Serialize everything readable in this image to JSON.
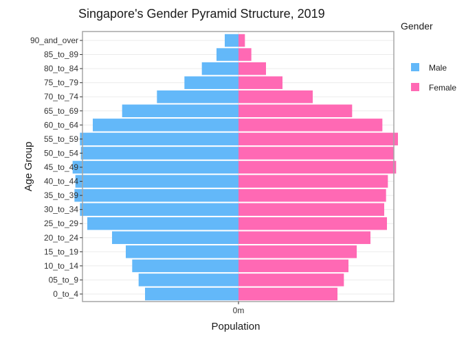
{
  "chart_data": {
    "type": "bar",
    "orientation": "horizontal",
    "title": "Singapore's Gender Pyramid Structure, 2019",
    "xlabel": "Population",
    "ylabel": "Age Group",
    "x_tick_labels": [
      "0m"
    ],
    "xlim": [
      -168000,
      168000
    ],
    "grid": true,
    "legend": {
      "title": "Gender",
      "position": "right"
    },
    "categories": [
      "0_to_4",
      "05_to_9",
      "10_to_14",
      "15_to_19",
      "20_to_24",
      "25_to_29",
      "30_to_34",
      "35_to_39",
      "40_to_44",
      "45_to_49",
      "50_to_54",
      "55_to_59",
      "60_to_64",
      "65_to_69",
      "70_to_74",
      "75_to_79",
      "80_to_84",
      "85_to_89",
      "90_and_over"
    ],
    "series": [
      {
        "name": "Male",
        "color": "#63b8f9",
        "values": [
          -102000,
          -109000,
          -116000,
          -123000,
          -138000,
          -165000,
          -173000,
          -179000,
          -178000,
          -181000,
          -172000,
          -173000,
          -159000,
          -127000,
          -89000,
          -59000,
          -40000,
          -24000,
          -15000
        ]
      },
      {
        "name": "Female",
        "color": "#ff69b4",
        "values": [
          108000,
          115000,
          120000,
          129000,
          144000,
          162000,
          159000,
          161000,
          163000,
          172000,
          170000,
          174000,
          157000,
          124000,
          81000,
          48000,
          30000,
          14000,
          7000
        ]
      }
    ]
  }
}
